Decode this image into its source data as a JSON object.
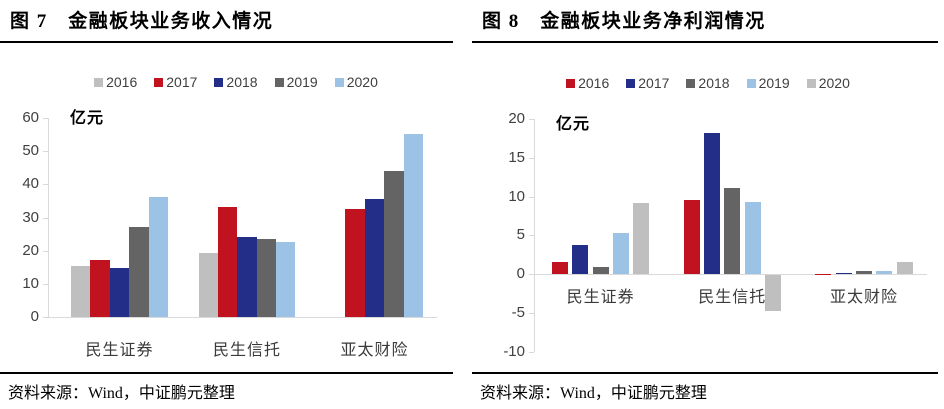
{
  "page": {
    "background": "#ffffff",
    "accent_axis_color": "#d9d9d9"
  },
  "figure7": {
    "source": "资料来源：Wind，中证鹏元整理"
  },
  "figure8": {
    "source": "资料来源：Wind，中证鹏元整理"
  },
  "chart_data": [
    {
      "id": "chart7",
      "type": "bar",
      "title": "图 7　金融板块业务收入情况",
      "ylabel": "亿元",
      "xlabel": "",
      "categories": [
        "民生证券",
        "民生信托",
        "亚太财险"
      ],
      "series": [
        {
          "name": "2016",
          "color": "#bfbfbf",
          "values": [
            15.5,
            19.3,
            null
          ]
        },
        {
          "name": "2017",
          "color": "#c0121f",
          "values": [
            17.3,
            33.2,
            32.5
          ]
        },
        {
          "name": "2018",
          "color": "#222e88",
          "values": [
            14.7,
            24.0,
            35.6
          ]
        },
        {
          "name": "2019",
          "color": "#646464",
          "values": [
            27.0,
            23.5,
            44.0
          ]
        },
        {
          "name": "2020",
          "color": "#9cc2e5",
          "values": [
            36.3,
            22.6,
            55.3
          ]
        }
      ],
      "ylim": [
        0,
        60
      ],
      "ytick_step": 10,
      "grid": false,
      "legend_position": "top",
      "axis_color": "#d9d9d9",
      "label_color": "#404040"
    },
    {
      "id": "chart8",
      "type": "bar",
      "title": "图 8　金融板块业务净利润情况",
      "ylabel": "亿元",
      "xlabel": "",
      "categories": [
        "民生证券",
        "民生信托",
        "亚太财险"
      ],
      "series": [
        {
          "name": "2016",
          "color": "#c0121f",
          "values": [
            1.6,
            9.5,
            0.05
          ]
        },
        {
          "name": "2017",
          "color": "#222e88",
          "values": [
            3.8,
            18.2,
            0.15
          ]
        },
        {
          "name": "2018",
          "color": "#646464",
          "values": [
            0.9,
            11.1,
            0.35
          ]
        },
        {
          "name": "2019",
          "color": "#9cc2e5",
          "values": [
            5.3,
            9.3,
            0.45
          ]
        },
        {
          "name": "2020",
          "color": "#bfbfbf",
          "values": [
            9.2,
            -4.6,
            1.5
          ]
        }
      ],
      "ylim": [
        -10,
        20
      ],
      "ytick_step": 5,
      "grid": false,
      "legend_position": "top",
      "axis_color": "#d9d9d9",
      "label_color": "#404040"
    }
  ]
}
